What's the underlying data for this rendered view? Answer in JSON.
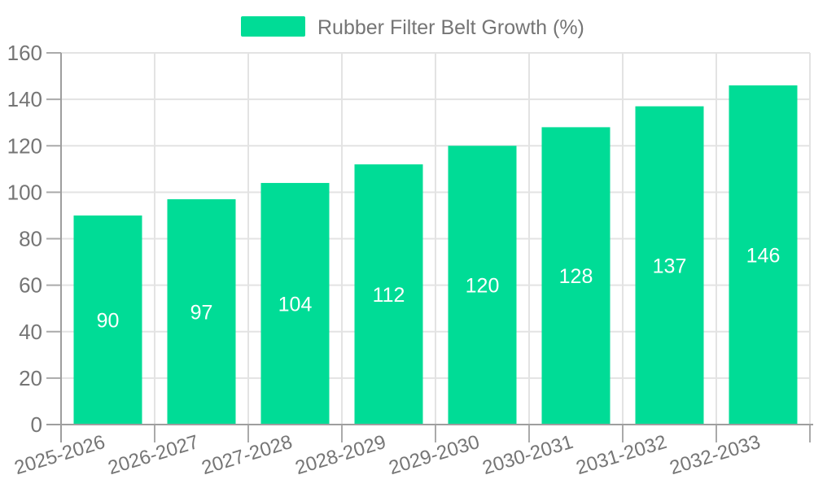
{
  "legend": {
    "label": "Rubber Filter Belt Growth (%)"
  },
  "chart_data": {
    "type": "bar",
    "title": "",
    "series_name": "Rubber Filter Belt Growth (%)",
    "categories": [
      "2025-2026",
      "2026-2027",
      "2027-2028",
      "2028-2029",
      "2029-2030",
      "2030-2031",
      "2031-2032",
      "2032-2033"
    ],
    "values": [
      90,
      97,
      104,
      112,
      120,
      128,
      137,
      146
    ],
    "ylim": [
      0,
      160
    ],
    "yticks": [
      0,
      20,
      40,
      60,
      80,
      100,
      120,
      140,
      160
    ],
    "grid": true,
    "legend_position": "top-center",
    "x_label_rotation": -17,
    "colors": {
      "bar": "#00DC96",
      "value_label": "#ffffff",
      "axis_text": "#757575",
      "grid_line": "#e3e3e3",
      "axis_line": "#9e9e9e",
      "tick_line": "#aaaaaa"
    }
  }
}
